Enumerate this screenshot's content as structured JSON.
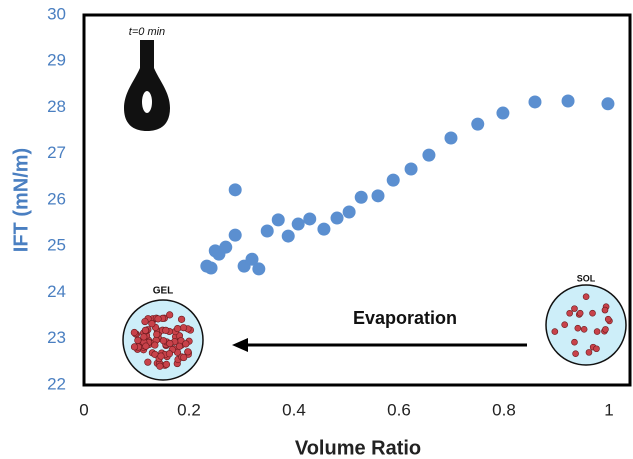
{
  "chart_data": {
    "type": "scatter",
    "xlabel": "Volume Ratio",
    "ylabel": "IFT (mN/m)",
    "x": [
      0.234,
      0.242,
      0.25,
      0.257,
      0.27,
      0.288,
      0.288,
      0.305,
      0.32,
      0.333,
      0.349,
      0.37,
      0.389,
      0.408,
      0.43,
      0.457,
      0.482,
      0.505,
      0.528,
      0.56,
      0.589,
      0.623,
      0.657,
      0.699,
      0.75,
      0.798,
      0.859,
      0.922,
      0.998
    ],
    "values": [
      24.57,
      24.53,
      24.9,
      24.83,
      24.98,
      26.22,
      25.24,
      24.57,
      24.72,
      24.51,
      25.33,
      25.57,
      25.22,
      25.48,
      25.59,
      25.37,
      25.61,
      25.74,
      26.06,
      26.09,
      26.43,
      26.67,
      26.97,
      27.34,
      27.64,
      27.88,
      28.12,
      28.14,
      28.08
    ],
    "color": "#5b8fd0",
    "xlim": [
      0,
      1.04
    ],
    "ylim": [
      22,
      30
    ],
    "xticks": [
      0,
      0.2,
      0.4,
      0.6,
      0.8,
      1
    ],
    "yticks": [
      22,
      23,
      24,
      25,
      26,
      27,
      28,
      29,
      30
    ],
    "annotations": [
      "t=0 min",
      "GEL",
      "SOL",
      "Evaporation"
    ]
  }
}
